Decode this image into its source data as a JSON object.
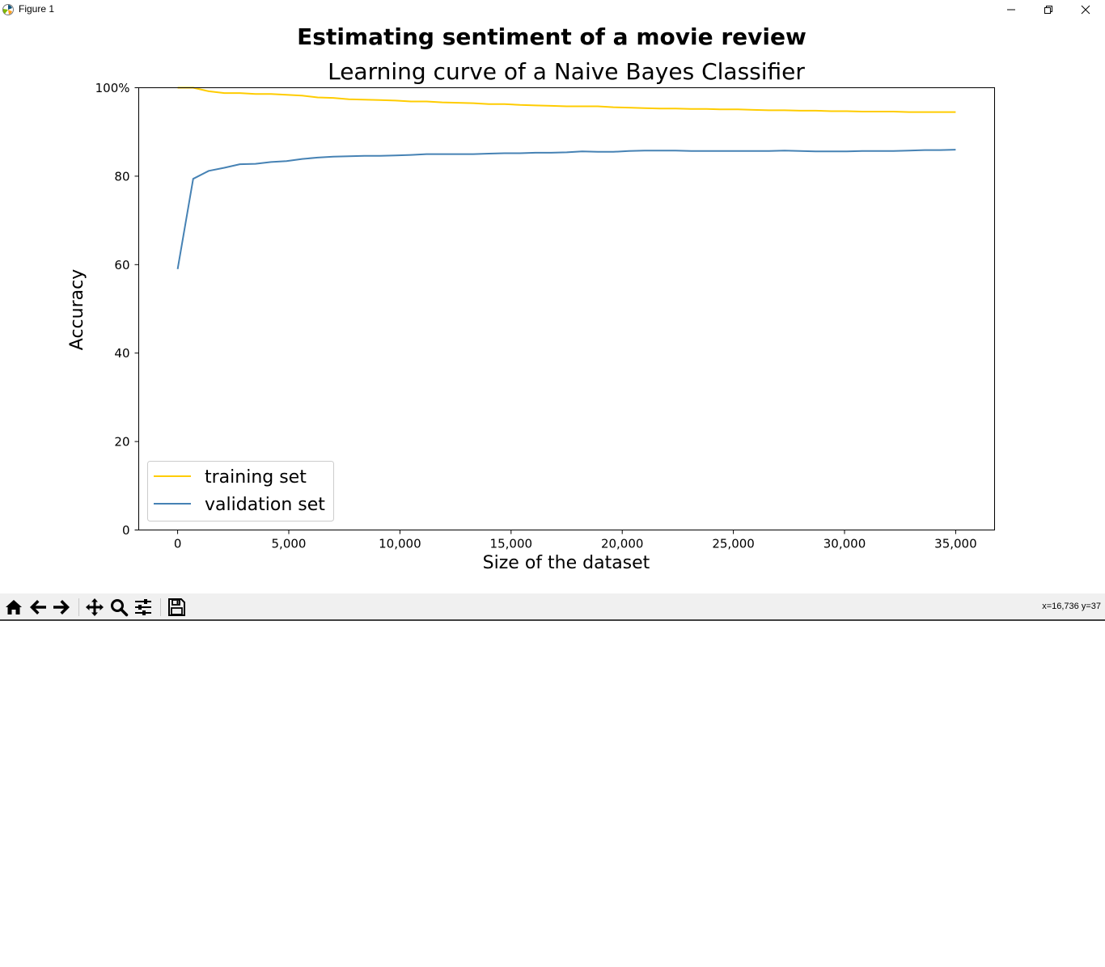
{
  "window": {
    "title": "Figure 1",
    "app_icon": "matplotlib-icon",
    "controls": [
      "minimize-icon",
      "restore-icon",
      "close-icon"
    ]
  },
  "chart_data": {
    "type": "line",
    "title": "Estimating sentiment of a movie review",
    "subtitle": "Learning curve of a Naive Bayes Classifier",
    "xlabel": "Size of the dataset",
    "ylabel": "Accuracy",
    "xlim": [
      -1750,
      36750
    ],
    "ylim": [
      0,
      100
    ],
    "x_ticks": [
      0,
      5000,
      10000,
      15000,
      20000,
      25000,
      30000,
      35000
    ],
    "x_tick_labels": [
      "0",
      "5,000",
      "10,000",
      "15,000",
      "20,000",
      "25,000",
      "30,000",
      "35,000"
    ],
    "y_ticks": [
      0,
      20,
      40,
      60,
      80,
      100
    ],
    "y_tick_labels": [
      "0",
      "20",
      "40",
      "60",
      "80",
      "100%"
    ],
    "grid": false,
    "legend_position": "lower-left",
    "x": [
      0,
      700,
      1400,
      2100,
      2800,
      3500,
      4200,
      4900,
      5600,
      6300,
      7000,
      7700,
      8400,
      9100,
      9800,
      10500,
      11200,
      11900,
      12600,
      13300,
      14000,
      14700,
      15400,
      16100,
      16800,
      17500,
      18200,
      18900,
      19600,
      20300,
      21000,
      21700,
      22400,
      23100,
      23800,
      24500,
      25200,
      25900,
      26600,
      27300,
      28000,
      28700,
      29400,
      30100,
      30800,
      31500,
      32200,
      32900,
      33600,
      34300,
      35000
    ],
    "series": [
      {
        "name": "training set",
        "color": "#ffcc00",
        "values": [
          100,
          100,
          99.2,
          98.8,
          98.8,
          98.6,
          98.6,
          98.4,
          98.2,
          97.8,
          97.7,
          97.4,
          97.3,
          97.2,
          97.1,
          96.9,
          96.9,
          96.7,
          96.6,
          96.5,
          96.3,
          96.3,
          96.1,
          96.0,
          95.9,
          95.8,
          95.8,
          95.8,
          95.6,
          95.5,
          95.4,
          95.3,
          95.3,
          95.2,
          95.2,
          95.1,
          95.1,
          95.0,
          94.9,
          94.9,
          94.8,
          94.8,
          94.7,
          94.7,
          94.6,
          94.6,
          94.6,
          94.5,
          94.5,
          94.5,
          94.5
        ]
      },
      {
        "name": "validation set",
        "color": "#4682b4",
        "values": [
          59.0,
          79.4,
          81.2,
          81.9,
          82.7,
          82.8,
          83.2,
          83.4,
          83.9,
          84.2,
          84.4,
          84.5,
          84.6,
          84.6,
          84.7,
          84.8,
          85.0,
          85.0,
          85.0,
          85.0,
          85.1,
          85.2,
          85.2,
          85.3,
          85.3,
          85.4,
          85.6,
          85.5,
          85.5,
          85.7,
          85.8,
          85.8,
          85.8,
          85.7,
          85.7,
          85.7,
          85.7,
          85.7,
          85.7,
          85.8,
          85.7,
          85.6,
          85.6,
          85.6,
          85.7,
          85.7,
          85.7,
          85.8,
          85.9,
          85.9,
          86.0
        ]
      }
    ]
  },
  "toolbar": {
    "buttons": [
      {
        "name": "home-button",
        "icon": "home-icon"
      },
      {
        "name": "back-button",
        "icon": "arrow-left-icon"
      },
      {
        "name": "forward-button",
        "icon": "arrow-right-icon"
      },
      {
        "name": "pan-button",
        "icon": "move-icon"
      },
      {
        "name": "zoom-button",
        "icon": "magnifier-icon"
      },
      {
        "name": "configure-subplots-button",
        "icon": "sliders-icon"
      },
      {
        "name": "save-button",
        "icon": "floppy-disk-icon"
      }
    ],
    "coordinates": "x=16,736 y=37"
  }
}
